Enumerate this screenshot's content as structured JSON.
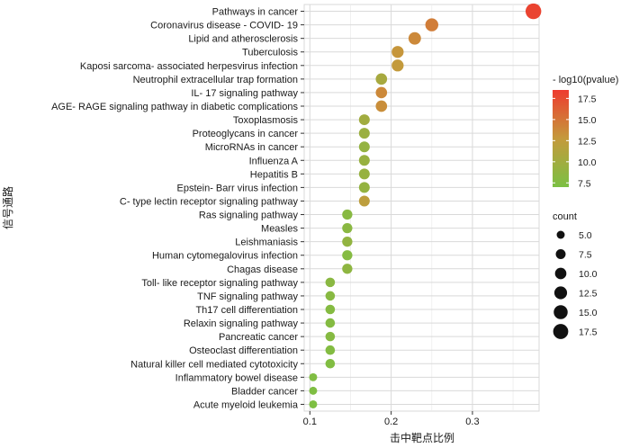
{
  "chart_data": {
    "type": "scatter",
    "title": "",
    "xlabel": "击中靶点比例",
    "ylabel": "信号通路",
    "xlim": [
      0.093,
      0.382
    ],
    "xticks": [
      0.1,
      0.2,
      0.3
    ],
    "x_tick_labels": [
      "0.1",
      "0.2",
      "0.3"
    ],
    "grid": true,
    "points": [
      {
        "pathway": "Pathways in cancer",
        "ratio": 0.375,
        "count": 19,
        "neglog10p": 18.0
      },
      {
        "pathway": "Coronavirus disease -  COVID- 19",
        "ratio": 0.25,
        "count": 13,
        "neglog10p": 14.5
      },
      {
        "pathway": "Lipid and atherosclerosis",
        "ratio": 0.229,
        "count": 12,
        "neglog10p": 13.8
      },
      {
        "pathway": "Tuberculosis",
        "ratio": 0.208,
        "count": 11,
        "neglog10p": 13.0
      },
      {
        "pathway": "Kaposi sarcoma- associated herpesvirus infection",
        "ratio": 0.208,
        "count": 11,
        "neglog10p": 12.7
      },
      {
        "pathway": "Neutrophil extracellular trap formation",
        "ratio": 0.188,
        "count": 10,
        "neglog10p": 10.5
      },
      {
        "pathway": "IL- 17 signaling pathway",
        "ratio": 0.188,
        "count": 10,
        "neglog10p": 13.8
      },
      {
        "pathway": "AGE- RAGE signaling pathway in diabetic complications",
        "ratio": 0.188,
        "count": 10,
        "neglog10p": 13.5
      },
      {
        "pathway": "Toxoplasmosis",
        "ratio": 0.167,
        "count": 9,
        "neglog10p": 10.0
      },
      {
        "pathway": "Proteoglycans in cancer",
        "ratio": 0.167,
        "count": 9,
        "neglog10p": 9.5
      },
      {
        "pathway": "MicroRNAs in cancer",
        "ratio": 0.167,
        "count": 9,
        "neglog10p": 9.0
      },
      {
        "pathway": "Influenza A",
        "ratio": 0.167,
        "count": 9,
        "neglog10p": 9.2
      },
      {
        "pathway": "Hepatitis B",
        "ratio": 0.167,
        "count": 9,
        "neglog10p": 9.2
      },
      {
        "pathway": "Epstein- Barr virus infection",
        "ratio": 0.167,
        "count": 9,
        "neglog10p": 9.0
      },
      {
        "pathway": "C- type lectin receptor signaling pathway",
        "ratio": 0.167,
        "count": 9,
        "neglog10p": 12.2
      },
      {
        "pathway": "Ras signaling pathway",
        "ratio": 0.146,
        "count": 8,
        "neglog10p": 8.0
      },
      {
        "pathway": "Measles",
        "ratio": 0.146,
        "count": 8,
        "neglog10p": 8.2
      },
      {
        "pathway": "Leishmaniasis",
        "ratio": 0.146,
        "count": 8,
        "neglog10p": 8.8
      },
      {
        "pathway": "Human cytomegalovirus infection",
        "ratio": 0.146,
        "count": 8,
        "neglog10p": 7.8
      },
      {
        "pathway": "Chagas disease",
        "ratio": 0.146,
        "count": 8,
        "neglog10p": 8.5
      },
      {
        "pathway": "Toll- like receptor signaling pathway",
        "ratio": 0.125,
        "count": 7,
        "neglog10p": 8.2
      },
      {
        "pathway": "TNF signaling pathway",
        "ratio": 0.125,
        "count": 7,
        "neglog10p": 8.0
      },
      {
        "pathway": "Th17 cell differentiation",
        "ratio": 0.125,
        "count": 7,
        "neglog10p": 7.8
      },
      {
        "pathway": "Relaxin signaling pathway",
        "ratio": 0.125,
        "count": 7,
        "neglog10p": 7.7
      },
      {
        "pathway": "Pancreatic cancer",
        "ratio": 0.125,
        "count": 7,
        "neglog10p": 7.9
      },
      {
        "pathway": "Osteoclast differentiation",
        "ratio": 0.125,
        "count": 7,
        "neglog10p": 7.6
      },
      {
        "pathway": "Natural killer cell mediated cytotoxicity",
        "ratio": 0.125,
        "count": 7,
        "neglog10p": 7.5
      },
      {
        "pathway": "Inflammatory bowel disease",
        "ratio": 0.104,
        "count": 5,
        "neglog10p": 7.4
      },
      {
        "pathway": "Bladder cancer",
        "ratio": 0.104,
        "count": 5,
        "neglog10p": 7.3
      },
      {
        "pathway": "Acute myeloid leukemia",
        "ratio": 0.104,
        "count": 5,
        "neglog10p": 7.2
      }
    ],
    "color_legend": {
      "title": "- log10(pvalue)",
      "min": 7.0,
      "max": 18.5,
      "ticks": [
        7.5,
        10.0,
        12.5,
        15.0,
        17.5
      ],
      "tick_labels": [
        "7.5",
        "10.0",
        "12.5",
        "15.0",
        "17.5"
      ],
      "low_color": "#7bc043",
      "mid_color": "#c49a3c",
      "high_color": "#ee3b2f"
    },
    "size_legend": {
      "title": "count",
      "values": [
        5.0,
        7.5,
        10.0,
        12.5,
        15.0,
        17.5
      ],
      "labels": [
        "5.0",
        "7.5",
        "10.0",
        "12.5",
        "15.0",
        "17.5"
      ]
    }
  }
}
